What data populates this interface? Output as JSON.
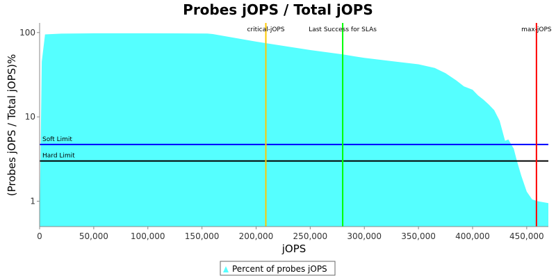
{
  "chart_data": {
    "type": "area",
    "title": "Probes jOPS / Total jOPS",
    "xlabel": "jOPS",
    "ylabel": "(Probes jOPS / Total jOPS)%",
    "yscale": "log",
    "xlim": [
      0,
      470000
    ],
    "ylim": [
      0.5,
      130
    ],
    "x_ticks": [
      0,
      50000,
      100000,
      150000,
      200000,
      250000,
      300000,
      350000,
      400000,
      450000
    ],
    "x_tick_labels": [
      "0",
      "50,000",
      "100,000",
      "150,000",
      "200,000",
      "250,000",
      "300,000",
      "350,000",
      "400,000",
      "450,000"
    ],
    "y_ticks": [
      1,
      10,
      100
    ],
    "y_tick_labels": [
      "1",
      "10",
      "100"
    ],
    "grid": false,
    "legend_position": "bottom-center",
    "series": [
      {
        "name": "Percent of probes jOPS",
        "color": "#55ffff",
        "x": [
          0,
          2000,
          5000,
          20000,
          50000,
          100000,
          155000,
          160000,
          200000,
          250000,
          280000,
          300000,
          330000,
          350000,
          365000,
          375000,
          385000,
          392000,
          400000,
          405000,
          410000,
          415000,
          420000,
          425000,
          430000,
          433000,
          438000,
          441000,
          445000,
          450000,
          455000,
          460000,
          470000
        ],
        "y": [
          0.5,
          45,
          95,
          97,
          98,
          98,
          97.5,
          96,
          78,
          62,
          55,
          50,
          45,
          42,
          38,
          33,
          27,
          23,
          21,
          18,
          16,
          14,
          12,
          9,
          5.2,
          5.4,
          4.2,
          3,
          2,
          1.3,
          1.05,
          1.0,
          0.95
        ]
      }
    ],
    "markers": [
      {
        "label": "critical-jOPS",
        "x": 209000,
        "color": "#ffc800",
        "orientation": "vertical"
      },
      {
        "label": "Last Success for SLAs",
        "x": 280000,
        "color": "#00ff00",
        "orientation": "vertical"
      },
      {
        "label": "max-jOPS",
        "x": 459000,
        "color": "#ff0000",
        "orientation": "vertical"
      },
      {
        "label": "Soft Limit",
        "y": 4.7,
        "color": "#0000ff",
        "orientation": "horizontal"
      },
      {
        "label": "Hard Limit",
        "y": 3.0,
        "color": "#000000",
        "orientation": "horizontal"
      }
    ]
  }
}
